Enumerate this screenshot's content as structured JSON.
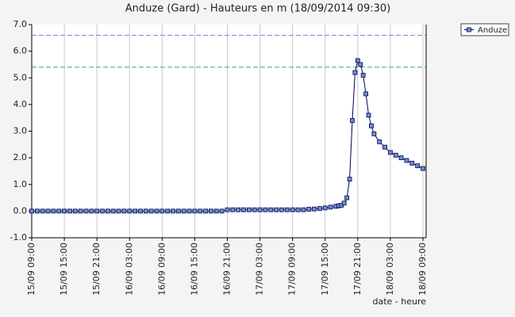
{
  "chart_data": {
    "type": "line",
    "title": "Anduze (Gard) - Hauteurs en m (18/09/2014 09:30)",
    "x_label": "date - heure",
    "x": [
      "15/09 09:00",
      "15/09 10:00",
      "15/09 11:00",
      "15/09 12:00",
      "15/09 13:00",
      "15/09 14:00",
      "15/09 15:00",
      "15/09 16:00",
      "15/09 17:00",
      "15/09 18:00",
      "15/09 19:00",
      "15/09 20:00",
      "15/09 21:00",
      "15/09 22:00",
      "15/09 23:00",
      "16/09 00:00",
      "16/09 01:00",
      "16/09 02:00",
      "16/09 03:00",
      "16/09 04:00",
      "16/09 05:00",
      "16/09 06:00",
      "16/09 07:00",
      "16/09 08:00",
      "16/09 09:00",
      "16/09 10:00",
      "16/09 11:00",
      "16/09 12:00",
      "16/09 13:00",
      "16/09 14:00",
      "16/09 15:00",
      "16/09 16:00",
      "16/09 17:00",
      "16/09 18:00",
      "16/09 19:00",
      "16/09 20:00",
      "16/09 21:00",
      "16/09 22:00",
      "16/09 23:00",
      "17/09 00:00",
      "17/09 01:00",
      "17/09 02:00",
      "17/09 03:00",
      "17/09 04:00",
      "17/09 05:00",
      "17/09 06:00",
      "17/09 07:00",
      "17/09 08:00",
      "17/09 09:00",
      "17/09 10:00",
      "17/09 11:00",
      "17/09 12:00",
      "17/09 13:00",
      "17/09 14:00",
      "17/09 15:00",
      "17/09 16:00",
      "17/09 17:00",
      "17/09 17:30",
      "17/09 18:00",
      "17/09 18:30",
      "17/09 19:00",
      "17/09 19:30",
      "17/09 20:00",
      "17/09 20:30",
      "17/09 21:00",
      "17/09 21:30",
      "17/09 22:00",
      "17/09 22:30",
      "17/09 23:00",
      "17/09 23:30",
      "18/09 00:00",
      "18/09 01:00",
      "18/09 02:00",
      "18/09 03:00",
      "18/09 04:00",
      "18/09 05:00",
      "18/09 06:00",
      "18/09 07:00",
      "18/09 08:00",
      "18/09 09:00"
    ],
    "series": [
      {
        "name": "Anduze",
        "color": "#000060",
        "marker_color": "#6f8fc0",
        "values": [
          0,
          0,
          0,
          0,
          0,
          0,
          0,
          0,
          0,
          0,
          0,
          0,
          0,
          0,
          0,
          0,
          0,
          0,
          0,
          0,
          0,
          0,
          0,
          0,
          0,
          0,
          0,
          0,
          0,
          0,
          0,
          0,
          0,
          0,
          0,
          0,
          0.05,
          0.05,
          0.05,
          0.05,
          0.05,
          0.05,
          0.05,
          0.05,
          0.05,
          0.05,
          0.05,
          0.05,
          0.05,
          0.05,
          0.05,
          0.07,
          0.08,
          0.1,
          0.12,
          0.15,
          0.18,
          0.2,
          0.22,
          0.3,
          0.5,
          1.2,
          3.4,
          5.2,
          5.65,
          5.5,
          5.1,
          4.4,
          3.6,
          3.2,
          2.9,
          2.6,
          2.4,
          2.2,
          2.1,
          2.0,
          1.9,
          1.8,
          1.7,
          1.6
        ]
      }
    ],
    "xlim": [
      "15/09 09:00",
      "18/09 09:00"
    ],
    "xticks": [
      "15/09 09:00",
      "15/09 15:00",
      "15/09 21:00",
      "16/09 03:00",
      "16/09 09:00",
      "16/09 15:00",
      "16/09 21:00",
      "17/09 03:00",
      "17/09 09:00",
      "17/09 15:00",
      "17/09 21:00",
      "18/09 03:00",
      "18/09 09:00"
    ],
    "ylim": [
      -1,
      7
    ],
    "yticks": [
      {
        "value": -1,
        "label": "-1.0"
      },
      {
        "value": 0,
        "label": "0.0"
      },
      {
        "value": 1,
        "label": "1.0"
      },
      {
        "value": 2,
        "label": "2.0"
      },
      {
        "value": 3,
        "label": "3.0"
      },
      {
        "value": 4,
        "label": "4.0"
      },
      {
        "value": 5,
        "label": "5.0"
      },
      {
        "value": 6,
        "label": "6.0"
      },
      {
        "value": 7,
        "label": "7.0"
      }
    ],
    "reference_lines": [
      {
        "value": 6.6,
        "color": "#8888c8"
      },
      {
        "value": 5.4,
        "color": "#3aa0a8"
      }
    ],
    "grid": true,
    "legend": "top-right"
  }
}
